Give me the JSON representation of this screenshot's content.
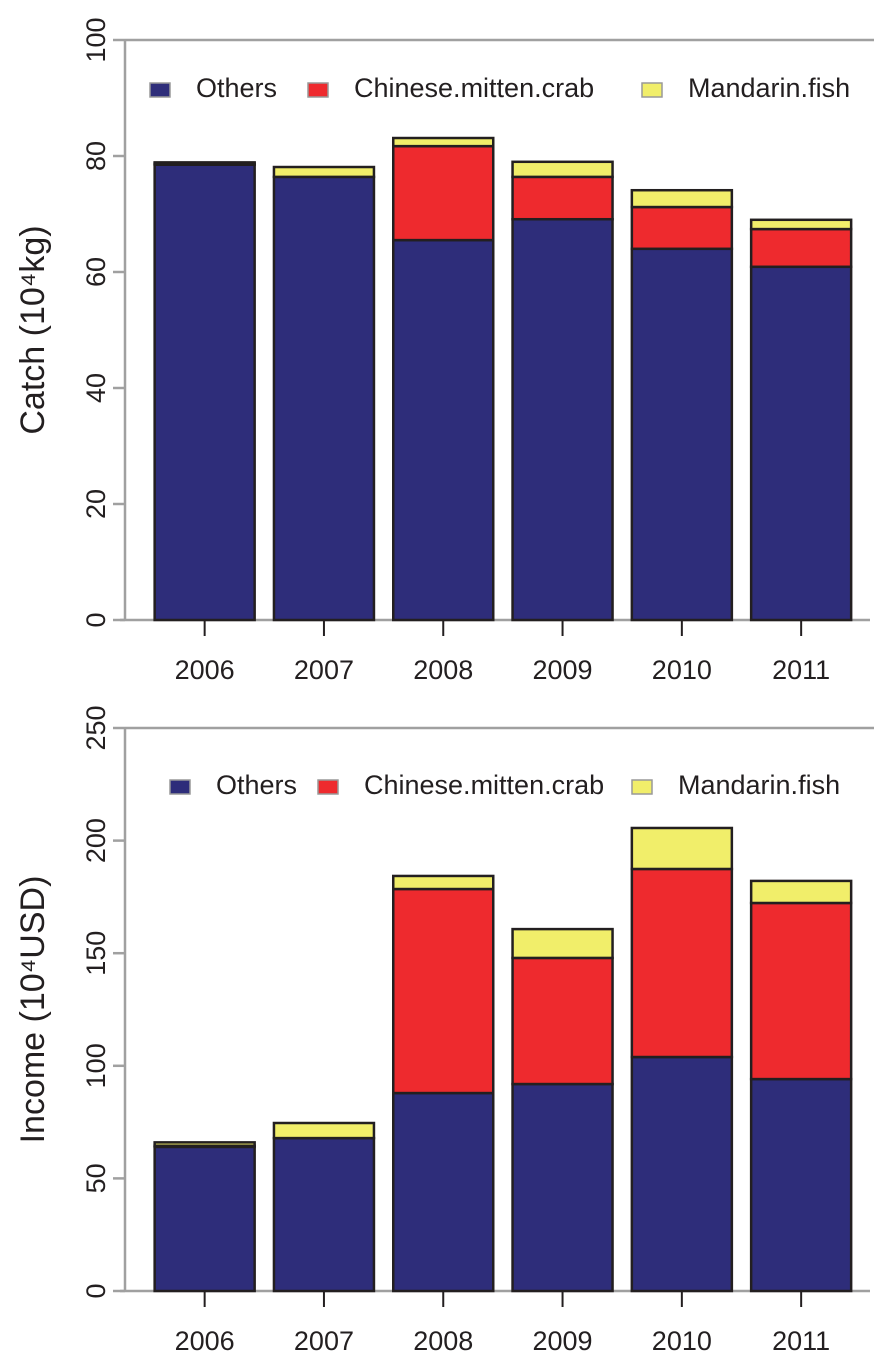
{
  "chart_data": [
    {
      "type": "stacked-bar",
      "ylabel": "Catch (10⁴kg)",
      "categories": [
        "2006",
        "2007",
        "2008",
        "2009",
        "2010",
        "2011"
      ],
      "series": [
        {
          "name": "Others",
          "color": "#2e2d7a",
          "values": [
            78.5,
            76.4,
            65.5,
            69.1,
            64.0,
            60.9
          ]
        },
        {
          "name": "Chinese.mitten.crab",
          "color": "#ee2a2e",
          "values": [
            0.2,
            0,
            16.2,
            7.3,
            7.2,
            6.5
          ]
        },
        {
          "name": "Mandarin.fish",
          "color": "#f1ee6a",
          "values": [
            0.2,
            1.7,
            1.4,
            2.6,
            2.9,
            1.6
          ]
        }
      ],
      "ylim": [
        0,
        100
      ],
      "yticks": [
        0,
        20,
        40,
        60,
        80,
        100
      ]
    },
    {
      "type": "stacked-bar",
      "ylabel": "Income (10⁴USD)",
      "categories": [
        "2006",
        "2007",
        "2008",
        "2009",
        "2010",
        "2011"
      ],
      "series": [
        {
          "name": "Others",
          "color": "#2e2d7a",
          "values": [
            64,
            67.9,
            87.9,
            91.9,
            103.9,
            94.1
          ]
        },
        {
          "name": "Chinese.mitten.crab",
          "color": "#ee2a2e",
          "values": [
            0.5,
            0,
            90.6,
            56,
            83.5,
            78.2
          ]
        },
        {
          "name": "Mandarin.fish",
          "color": "#f1ee6a",
          "values": [
            1.5,
            6.7,
            5.8,
            12.8,
            18.2,
            9.8
          ]
        }
      ],
      "ylim": [
        0,
        250
      ],
      "yticks": [
        0,
        50,
        100,
        150,
        200,
        250
      ]
    }
  ]
}
